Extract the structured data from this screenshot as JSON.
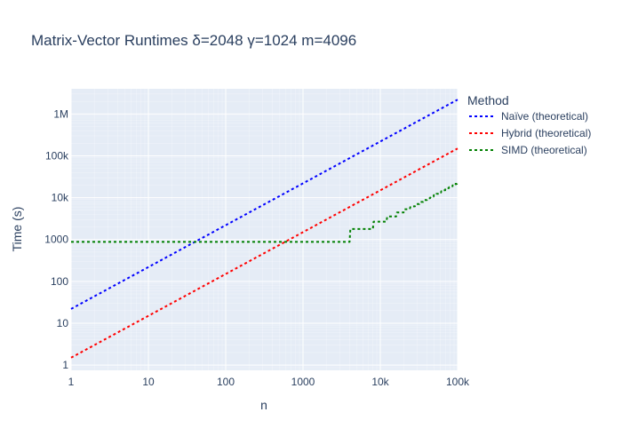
{
  "chart_data": {
    "type": "line",
    "title": "Matrix-Vector Runtimes δ=2048  γ=1024 m=4096",
    "xlabel": "n",
    "ylabel": "Time (s)",
    "x_scale": "log",
    "y_scale": "log",
    "xlim": [
      1,
      100000
    ],
    "ylim": [
      0.75,
      4000000
    ],
    "grid": true,
    "x_ticks": [
      {
        "value": 1,
        "label": "1"
      },
      {
        "value": 10,
        "label": "10"
      },
      {
        "value": 100,
        "label": "100"
      },
      {
        "value": 1000,
        "label": "1000"
      },
      {
        "value": 10000,
        "label": "10k"
      },
      {
        "value": 100000,
        "label": "100k"
      }
    ],
    "y_ticks": [
      {
        "value": 1,
        "label": "1"
      },
      {
        "value": 10,
        "label": "10"
      },
      {
        "value": 100,
        "label": "100"
      },
      {
        "value": 1000,
        "label": "1000"
      },
      {
        "value": 10000,
        "label": "10k"
      },
      {
        "value": 100000,
        "label": "100k"
      },
      {
        "value": 1000000,
        "label": "1M"
      }
    ],
    "legend_title": "Method",
    "legend_position": "right",
    "series": [
      {
        "name": "Naïve (theoretical)",
        "color": "#0000ff",
        "dash": "dot",
        "x": [
          1,
          100000
        ],
        "y": [
          22,
          2200000
        ]
      },
      {
        "name": "Hybrid (theoretical)",
        "color": "#ff0000",
        "dash": "dot",
        "x": [
          1,
          100000
        ],
        "y": [
          1.5,
          150000
        ]
      },
      {
        "name": "SIMD (theoretical)",
        "color": "#008000",
        "dash": "dot",
        "x": [
          1,
          4000,
          4096,
          8000,
          8192,
          12000,
          12288,
          16000,
          16384,
          20000,
          20480,
          24000,
          24576,
          28000,
          28672,
          32000,
          32768,
          36000,
          36864,
          40000,
          40960,
          44000,
          45056,
          49000,
          49152,
          53000,
          53248,
          57000,
          57344,
          61000,
          61440,
          65000,
          65536,
          69000,
          69632,
          73000,
          73728,
          77000,
          77824,
          81000,
          81920,
          86000,
          86016,
          90000,
          90112,
          94000,
          94208,
          98000,
          98304,
          100000
        ],
        "y": [
          880,
          880,
          1780,
          1780,
          2680,
          2680,
          3560,
          3560,
          4420,
          4420,
          5300,
          5300,
          6200,
          6200,
          7050,
          7050,
          7900,
          7900,
          8800,
          8800,
          9700,
          9700,
          10600,
          10600,
          11500,
          11500,
          12400,
          12400,
          13300,
          13300,
          14200,
          14200,
          15100,
          15100,
          16000,
          16000,
          16900,
          16900,
          17800,
          17800,
          18700,
          18700,
          19600,
          19600,
          20500,
          20500,
          21400,
          21400,
          22300,
          22300
        ]
      }
    ]
  }
}
